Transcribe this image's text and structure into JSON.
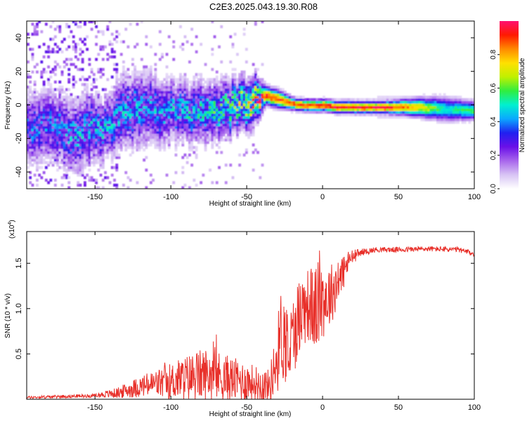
{
  "figure_title": "C2E3.2025.043.19.30.R08",
  "colors": {
    "snr_line": "#e8302a",
    "axis": "#000000",
    "cmap": [
      "#ffffff",
      "#d8c4f4",
      "#a866ec",
      "#6a10e8",
      "#2020f0",
      "#0aa8ff",
      "#00f0d0",
      "#30ee40",
      "#c0f000",
      "#ffe000",
      "#ff8a00",
      "#ff1a00",
      "#ff1070"
    ]
  },
  "chart_data": [
    {
      "id": "spectrogram",
      "type": "heatmap",
      "title": "",
      "xlabel": "Height of straight line (km)",
      "ylabel": "Frequency (Hz)",
      "xlim": [
        -195,
        100
      ],
      "ylim": [
        -50,
        50
      ],
      "xticks": [
        -150,
        -100,
        -50,
        0,
        50,
        100
      ],
      "xtick_labels": [
        "-150",
        "-100",
        "-50",
        "0",
        "50",
        "100"
      ],
      "yticks": [
        -40,
        -20,
        0,
        20,
        40
      ],
      "ytick_labels": [
        "-40",
        "-20",
        "0",
        "20",
        "40"
      ],
      "colorbar": {
        "label": "Normalized spectral amplitude",
        "range": [
          0,
          1
        ],
        "ticks": [
          0.0,
          0.2,
          0.4,
          0.6,
          0.8
        ],
        "tick_labels": [
          "0.0",
          "0.2",
          "0.4",
          "0.6",
          "0.8"
        ]
      },
      "ridge": {
        "x": [
          -190,
          -175,
          -165,
          -155,
          -145,
          -135,
          -120,
          -100,
          -80,
          -60,
          -45,
          -38,
          -30,
          -20,
          -10,
          0,
          10,
          20,
          40,
          60,
          80,
          100
        ],
        "frequency": [
          -15,
          -12,
          -20,
          -16,
          -16,
          -5,
          -3,
          -4,
          -6,
          -2,
          2,
          5,
          3,
          0,
          -1,
          -1,
          -2,
          -2,
          -2,
          -2,
          -3,
          -4
        ],
        "amplitude": [
          0.35,
          0.35,
          0.4,
          0.4,
          0.4,
          0.4,
          0.4,
          0.4,
          0.45,
          0.55,
          0.75,
          0.9,
          0.9,
          0.9,
          0.9,
          0.95,
          0.95,
          0.95,
          0.95,
          0.8,
          0.5,
          0.6
        ],
        "spread": [
          12,
          12,
          12,
          12,
          10,
          12,
          12,
          10,
          10,
          9,
          8,
          3,
          3,
          2,
          2,
          2,
          2,
          2,
          2,
          3,
          4,
          3
        ]
      }
    },
    {
      "id": "snr",
      "type": "line",
      "title": "",
      "xlabel": "Height of straight line (km)",
      "ylabel": "SNR (10 * v/v)",
      "y_multiplier": "(x10⁴)",
      "y_multiplier_base": "(x10",
      "y_multiplier_exp": "4",
      "y_multiplier_close": ")",
      "xlim": [
        -195,
        100
      ],
      "ylim": [
        0,
        1.85
      ],
      "xticks": [
        -150,
        -100,
        -50,
        0,
        50,
        100
      ],
      "xtick_labels": [
        "-150",
        "-100",
        "-50",
        "0",
        "50",
        "100"
      ],
      "yticks": [
        0.5,
        1.0,
        1.5
      ],
      "ytick_labels": [
        "0.5",
        "1.0",
        "1.5"
      ],
      "envelope": {
        "x": [
          -195,
          -150,
          -135,
          -120,
          -100,
          -85,
          -75,
          -60,
          -45,
          -35,
          -30,
          -27,
          -22,
          -15,
          -10,
          -5,
          0,
          5,
          12,
          18,
          25,
          35,
          50,
          70,
          90,
          100
        ],
        "y": [
          0.02,
          0.04,
          0.07,
          0.14,
          0.2,
          0.25,
          0.28,
          0.22,
          0.18,
          0.15,
          0.45,
          0.75,
          0.55,
          0.95,
          1.05,
          1.0,
          1.1,
          1.15,
          1.35,
          1.55,
          1.62,
          1.65,
          1.65,
          1.66,
          1.65,
          1.6
        ],
        "amp": [
          0.015,
          0.02,
          0.06,
          0.12,
          0.2,
          0.28,
          0.3,
          0.25,
          0.2,
          0.18,
          0.4,
          0.55,
          0.45,
          0.45,
          0.4,
          0.5,
          0.45,
          0.35,
          0.25,
          0.1,
          0.04,
          0.03,
          0.03,
          0.03,
          0.03,
          0.03
        ]
      }
    }
  ]
}
